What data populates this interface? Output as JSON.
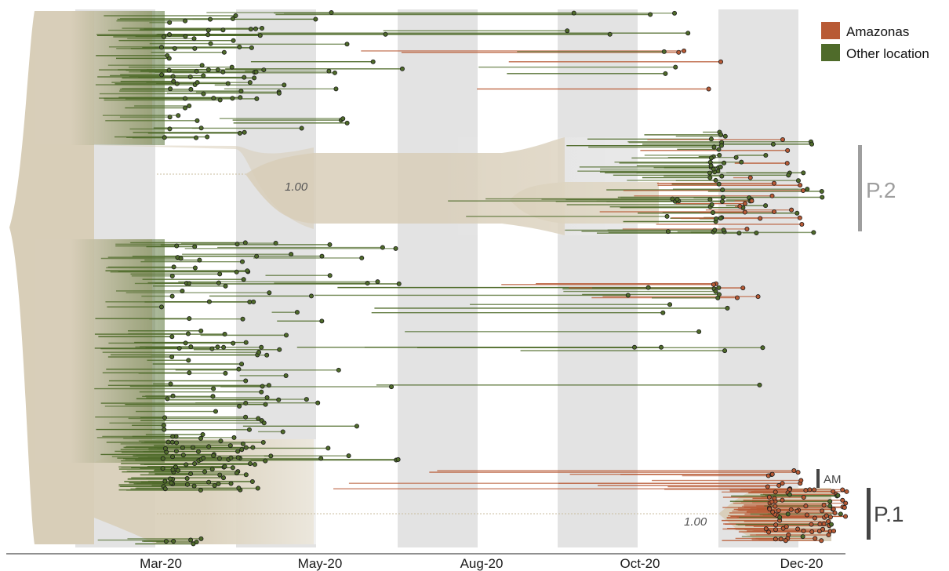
{
  "axis": {
    "ticks": [
      {
        "label": "Mar-20",
        "month": 2
      },
      {
        "label": "May-20",
        "month": 4
      },
      {
        "label": "Aug-20",
        "month": 7
      },
      {
        "label": "Oct-20",
        "month": 9
      },
      {
        "label": "Dec-20",
        "month": 11
      }
    ]
  },
  "legend": {
    "items": [
      {
        "label": "Amazonas",
        "color": "#b85a35"
      },
      {
        "label": "Other location",
        "color": "#4f6b2a"
      }
    ]
  },
  "clades": {
    "p2": {
      "label": "P.2",
      "color": "#9e9e9e"
    },
    "p1": {
      "label": "P.1",
      "color": "#444444"
    },
    "am": {
      "label": "AM",
      "color": "#444444"
    }
  },
  "support": {
    "p2": "1.00",
    "p1": "1.00"
  },
  "colors": {
    "band": "#e3e3e3",
    "trunk": "#d8ceb8",
    "trunk_line": "#c9bd9f",
    "amazonas": "#b85a35",
    "other": "#4f6b2a",
    "tip_stroke": "#1c1c1c"
  }
}
